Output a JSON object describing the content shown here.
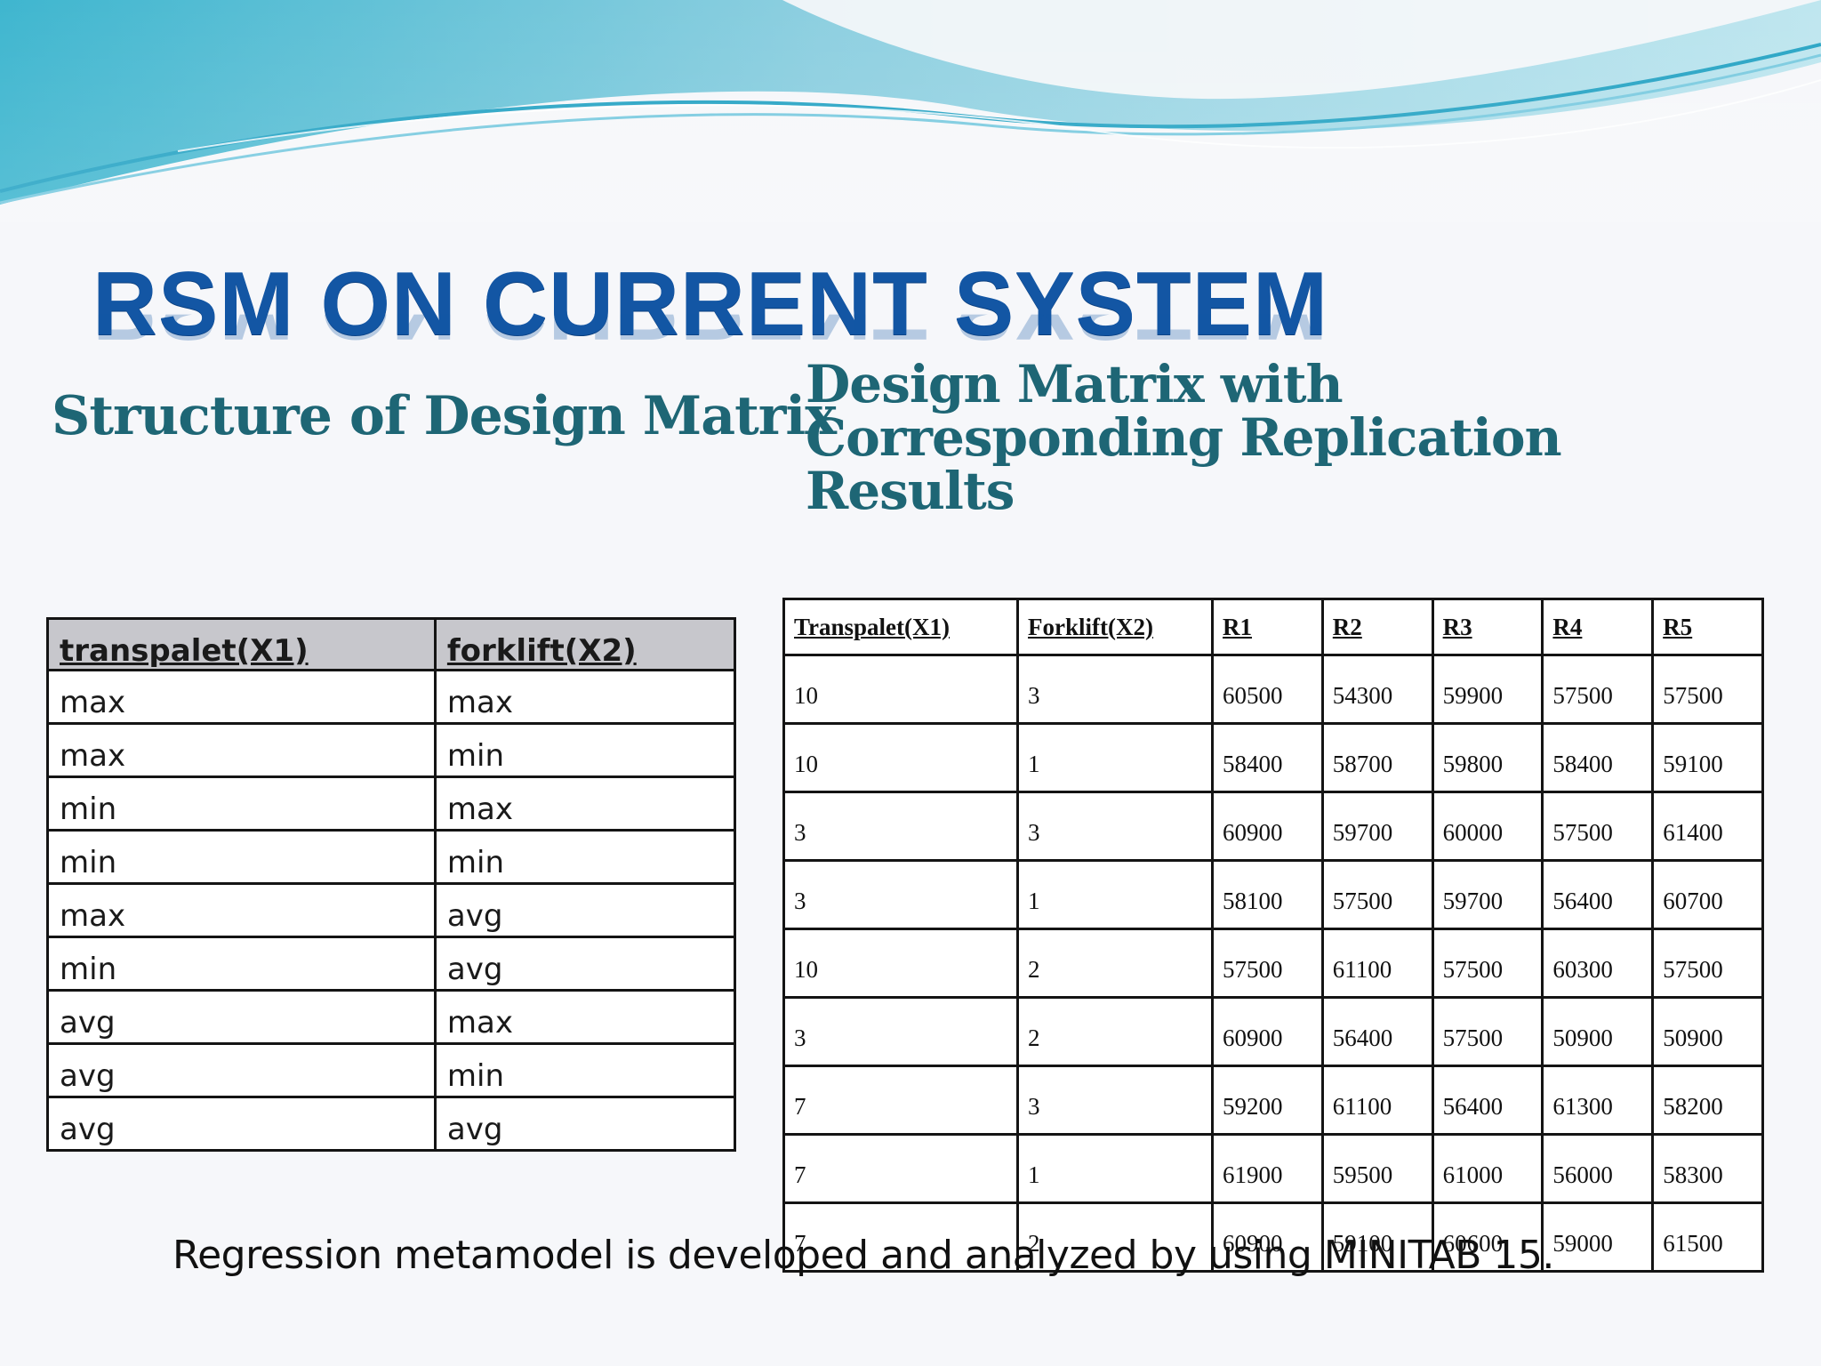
{
  "slide": {
    "title": "RSM ON CURRENT SYSTEM",
    "left_heading": "Structure of Design Matrix",
    "right_heading": "Design Matrix with Corresponding Replication Results",
    "footer": "Regression metamodel is developed and analyzed by using MINITAB 15."
  },
  "structure_table": {
    "headers": [
      "transpalet(X1)",
      "forklift(X2)"
    ],
    "rows": [
      [
        "max",
        "max"
      ],
      [
        "max",
        "min"
      ],
      [
        "min",
        "max"
      ],
      [
        "min",
        "min"
      ],
      [
        "max",
        "avg"
      ],
      [
        "min",
        "avg"
      ],
      [
        "avg",
        "max"
      ],
      [
        "avg",
        "min"
      ],
      [
        "avg",
        "avg"
      ]
    ]
  },
  "results_table": {
    "headers": [
      "Transpalet(X1)",
      "Forklift(X2)",
      "R1",
      "R2",
      "R3",
      "R4",
      "R5"
    ],
    "rows": [
      [
        "10",
        "3",
        "60500",
        "54300",
        "59900",
        "57500",
        "57500"
      ],
      [
        "10",
        "1",
        "58400",
        "58700",
        "59800",
        "58400",
        "59100"
      ],
      [
        "3",
        "3",
        "60900",
        "59700",
        "60000",
        "57500",
        "61400"
      ],
      [
        "3",
        "1",
        "58100",
        "57500",
        "59700",
        "56400",
        "60700"
      ],
      [
        "10",
        "2",
        "57500",
        "61100",
        "57500",
        "60300",
        "57500"
      ],
      [
        "3",
        "2",
        "60900",
        "56400",
        "57500",
        "50900",
        "50900"
      ],
      [
        "7",
        "3",
        "59200",
        "61100",
        "56400",
        "61300",
        "58200"
      ],
      [
        "7",
        "1",
        "61900",
        "59500",
        "61000",
        "56000",
        "58300"
      ],
      [
        "7",
        "2",
        "60900",
        "59100",
        "60600",
        "59000",
        "61500"
      ]
    ]
  },
  "colors": {
    "title": "#1356a4",
    "headings": "#1e6675",
    "background": "#f6f7fa",
    "wave_light": "#bfe6ef",
    "wave_mid": "#7ccbe0",
    "wave_deep": "#2aa5c5"
  }
}
